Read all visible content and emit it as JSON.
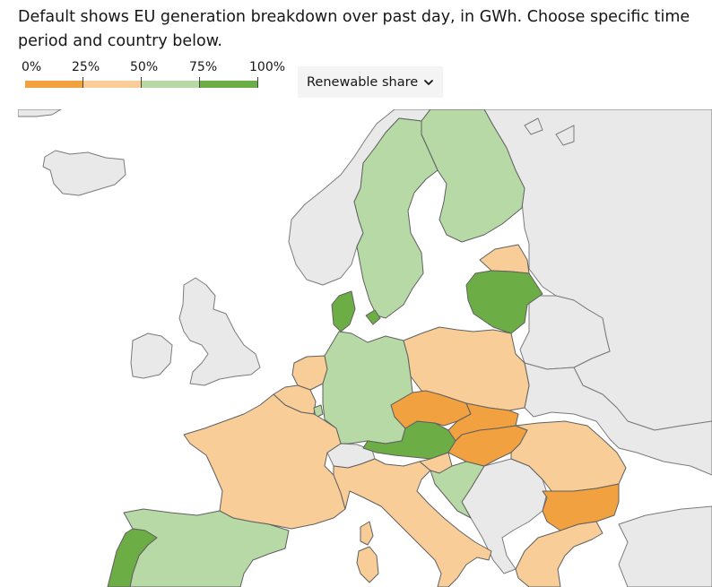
{
  "intro": "Default shows EU generation breakdown over past day, in GWh. Choose specific time period and country below.",
  "legend": {
    "ticks": [
      "0%",
      "25%",
      "50%",
      "75%",
      "100%"
    ],
    "bins": [
      {
        "range": "0-25%",
        "color": "#f1a140"
      },
      {
        "range": "25-50%",
        "color": "#f8cd97"
      },
      {
        "range": "50-75%",
        "color": "#b6d9a5"
      },
      {
        "range": "75-100%",
        "color": "#6cad46"
      }
    ]
  },
  "metric_select": {
    "selected": "Renewable share"
  },
  "map": {
    "metric": "renewable share",
    "non_eu_color": "#e9e9e9",
    "countries": [
      {
        "name": "Portugal",
        "bin": "75-100%"
      },
      {
        "name": "Spain",
        "bin": "50-75%"
      },
      {
        "name": "France",
        "bin": "25-50%"
      },
      {
        "name": "Belgium",
        "bin": "25-50%"
      },
      {
        "name": "Netherlands",
        "bin": "25-50%"
      },
      {
        "name": "Luxembourg",
        "bin": "50-75%"
      },
      {
        "name": "Germany",
        "bin": "50-75%"
      },
      {
        "name": "Denmark",
        "bin": "75-100%"
      },
      {
        "name": "Sweden",
        "bin": "50-75%"
      },
      {
        "name": "Finland",
        "bin": "50-75%"
      },
      {
        "name": "Latvia",
        "bin": "25-50%"
      },
      {
        "name": "Lithuania",
        "bin": "75-100%"
      },
      {
        "name": "Poland",
        "bin": "25-50%"
      },
      {
        "name": "Czechia",
        "bin": "0-25%"
      },
      {
        "name": "Slovakia",
        "bin": "0-25%"
      },
      {
        "name": "Hungary",
        "bin": "0-25%"
      },
      {
        "name": "Austria",
        "bin": "75-100%"
      },
      {
        "name": "Slovenia",
        "bin": "25-50%"
      },
      {
        "name": "Croatia",
        "bin": "50-75%"
      },
      {
        "name": "Italy",
        "bin": "25-50%"
      },
      {
        "name": "Romania",
        "bin": "25-50%"
      },
      {
        "name": "Bulgaria",
        "bin": "0-25%"
      },
      {
        "name": "Greece",
        "bin": "25-50%"
      }
    ]
  }
}
